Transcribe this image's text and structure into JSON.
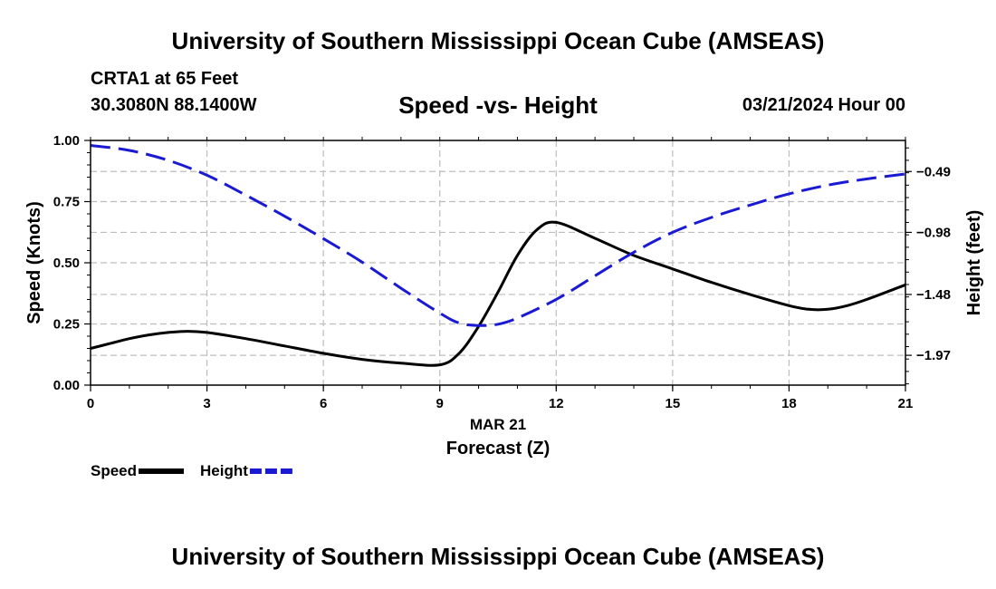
{
  "header": {
    "title": "University of Southern Mississippi Ocean Cube (AMSEAS)",
    "station": "CRTA1 at 65 Feet",
    "coords": "30.3080N  88.1400W",
    "subtitle": "Speed -vs- Height",
    "datetime": "03/21/2024 Hour 00"
  },
  "footer": {
    "title": "University of Southern Mississippi Ocean Cube (AMSEAS)"
  },
  "chart_data": {
    "type": "line",
    "title": "Speed -vs- Height",
    "xlabel": "Forecast (Z)",
    "xlabel_date": "MAR 21",
    "ylabel": "Speed (Knots)",
    "ylabel_right": "Height (feet)",
    "xlim": [
      0,
      21
    ],
    "ylim": [
      0,
      1
    ],
    "ylim_right": [
      -2.21,
      -0.24
    ],
    "xticks": [
      "0",
      "3",
      "6",
      "9",
      "12",
      "15",
      "18",
      "21"
    ],
    "yticks": [
      "0.00",
      "0.25",
      "0.50",
      "0.75",
      "1.00"
    ],
    "yticks_right": [
      "-0.49",
      "-0.98",
      "-1.48",
      "-1.97"
    ],
    "grid": true,
    "legend": "bottom-left",
    "series": [
      {
        "name": "Speed",
        "axis": "left",
        "color": "#000000",
        "dash": "solid",
        "x": [
          0,
          0.5,
          1,
          1.5,
          2,
          2.5,
          3,
          4,
          5,
          6,
          7,
          8,
          9,
          9.5,
          10,
          10.5,
          11,
          11.5,
          12,
          13,
          14,
          15,
          16,
          17,
          18,
          18.5,
          19,
          19.5,
          20,
          21
        ],
        "values": [
          0.15,
          0.17,
          0.19,
          0.205,
          0.215,
          0.22,
          0.215,
          0.19,
          0.16,
          0.13,
          0.105,
          0.09,
          0.083,
          0.13,
          0.24,
          0.38,
          0.53,
          0.635,
          0.665,
          0.6,
          0.53,
          0.475,
          0.42,
          0.37,
          0.325,
          0.31,
          0.31,
          0.325,
          0.35,
          0.41
        ]
      },
      {
        "name": "Height",
        "axis": "right",
        "color": "#1a1ad2",
        "dash": "dashed",
        "x": [
          0,
          1,
          2,
          3,
          4,
          5,
          6,
          7,
          8,
          9,
          9.5,
          10,
          10.5,
          11,
          12,
          13,
          14,
          15,
          16,
          17,
          18,
          19,
          20,
          21
        ],
        "values": [
          -0.28,
          -0.32,
          -0.4,
          -0.52,
          -0.68,
          -0.85,
          -1.03,
          -1.22,
          -1.43,
          -1.63,
          -1.71,
          -1.73,
          -1.72,
          -1.67,
          -1.52,
          -1.33,
          -1.14,
          -0.98,
          -0.86,
          -0.76,
          -0.67,
          -0.6,
          -0.55,
          -0.51
        ]
      }
    ]
  }
}
